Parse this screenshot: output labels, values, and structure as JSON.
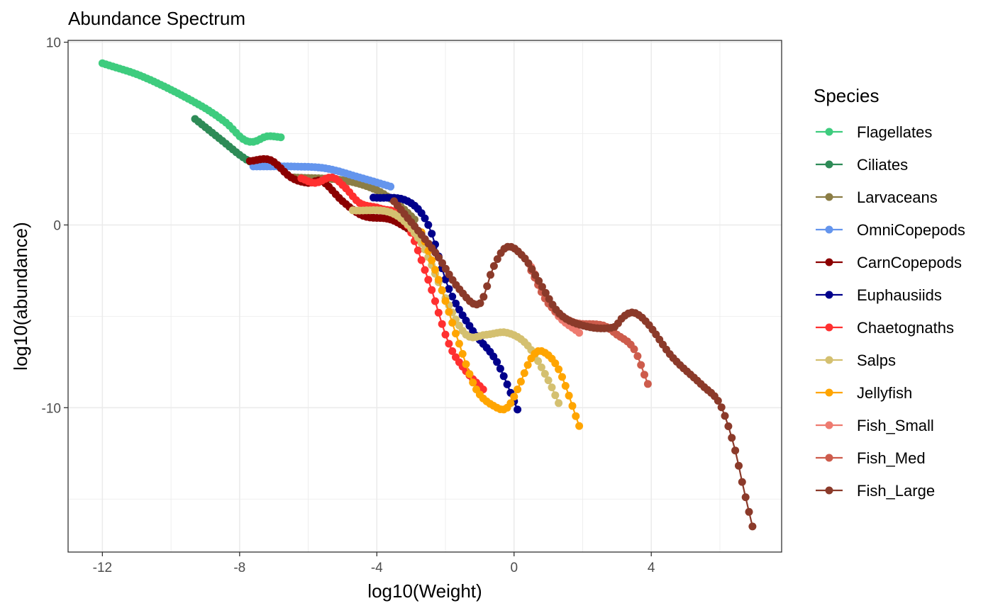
{
  "chart_data": {
    "type": "line",
    "title": "Abundance Spectrum",
    "xlabel": "log10(Weight)",
    "ylabel": "log10(abundance)",
    "xlim": [
      -13.0,
      7.8
    ],
    "ylim": [
      -17.9,
      10.1
    ],
    "x_major_ticks": [
      -12,
      -8,
      -4,
      0,
      4
    ],
    "x_tick_labels": [
      "-12",
      "-8",
      "-4",
      "0",
      "4"
    ],
    "x_minor_ticks": [
      -10,
      -6,
      -2,
      2,
      6
    ],
    "y_major_ticks": [
      10,
      0,
      -10
    ],
    "y_tick_labels": [
      "10",
      "0",
      "-10"
    ],
    "y_minor_ticks": [
      5,
      -5,
      -15
    ],
    "grid": true,
    "legend": {
      "title": "Species",
      "position": "right"
    },
    "series": [
      {
        "name": "Flagellates",
        "color": "#3ECC7E",
        "keypoints": [
          [
            -12.0,
            8.85
          ],
          [
            -10.8,
            8.1
          ],
          [
            -9.2,
            6.6
          ],
          [
            -8.4,
            5.6
          ],
          [
            -7.9,
            4.7
          ],
          [
            -7.6,
            4.55
          ],
          [
            -7.2,
            4.85
          ],
          [
            -6.8,
            4.8
          ]
        ]
      },
      {
        "name": "Ciliates",
        "color": "#2E8B57",
        "keypoints": [
          [
            -9.3,
            5.8
          ],
          [
            -8.5,
            4.6
          ],
          [
            -7.9,
            3.7
          ],
          [
            -7.5,
            3.3
          ],
          [
            -7.3,
            3.25
          ]
        ]
      },
      {
        "name": "Larvaceans",
        "color": "#8B7D45",
        "keypoints": [
          [
            -6.4,
            2.6
          ],
          [
            -5.0,
            2.45
          ],
          [
            -4.0,
            1.9
          ],
          [
            -3.3,
            1.0
          ],
          [
            -2.9,
            0.3
          ]
        ]
      },
      {
        "name": "OmniCopepods",
        "color": "#6495ED",
        "keypoints": [
          [
            -7.6,
            3.2
          ],
          [
            -6.5,
            3.2
          ],
          [
            -5.5,
            3.1
          ],
          [
            -4.5,
            2.6
          ],
          [
            -3.6,
            2.1
          ]
        ]
      },
      {
        "name": "CarnCopepods",
        "color": "#8B0000",
        "keypoints": [
          [
            -7.7,
            3.5
          ],
          [
            -7.1,
            3.55
          ],
          [
            -6.5,
            2.6
          ],
          [
            -6.0,
            2.3
          ],
          [
            -5.6,
            2.4
          ],
          [
            -5.0,
            1.3
          ],
          [
            -4.4,
            0.5
          ],
          [
            -3.6,
            0.3
          ],
          [
            -3.0,
            -0.3
          ]
        ]
      },
      {
        "name": "Euphausiids",
        "color": "#00008B",
        "keypoints": [
          [
            -4.1,
            1.5
          ],
          [
            -3.1,
            1.3
          ],
          [
            -2.5,
            0.0
          ],
          [
            -1.9,
            -3.5
          ],
          [
            -1.2,
            -5.8
          ],
          [
            -0.5,
            -7.5
          ],
          [
            0.1,
            -10.1
          ]
        ]
      },
      {
        "name": "Chaetognaths",
        "color": "#FF3030",
        "keypoints": [
          [
            -6.2,
            2.55
          ],
          [
            -5.8,
            2.3
          ],
          [
            -5.3,
            2.6
          ],
          [
            -4.9,
            2.0
          ],
          [
            -4.5,
            1.2
          ],
          [
            -3.9,
            0.9
          ],
          [
            -3.2,
            0.3
          ],
          [
            -2.5,
            -3.0
          ],
          [
            -1.9,
            -6.5
          ],
          [
            -1.4,
            -8.0
          ],
          [
            -0.9,
            -9.0
          ]
        ]
      },
      {
        "name": "Salps",
        "color": "#D4C070",
        "keypoints": [
          [
            -4.7,
            0.8
          ],
          [
            -3.5,
            0.6
          ],
          [
            -2.7,
            -1.0
          ],
          [
            -2.0,
            -4.0
          ],
          [
            -1.4,
            -6.0
          ],
          [
            -0.8,
            -6.0
          ],
          [
            -0.2,
            -5.9
          ],
          [
            0.4,
            -6.6
          ],
          [
            1.0,
            -8.5
          ],
          [
            1.3,
            -9.75
          ]
        ]
      },
      {
        "name": "Jellyfish",
        "color": "#FFA500",
        "keypoints": [
          [
            -2.7,
            -0.4
          ],
          [
            -2.2,
            -3.0
          ],
          [
            -1.6,
            -6.5
          ],
          [
            -1.1,
            -9.0
          ],
          [
            -0.5,
            -10.0
          ],
          [
            -0.2,
            -10.0
          ],
          [
            0.1,
            -9.0
          ],
          [
            0.5,
            -7.3
          ],
          [
            0.8,
            -6.9
          ],
          [
            1.3,
            -7.9
          ],
          [
            1.9,
            -11.0
          ]
        ]
      },
      {
        "name": "Fish_Small",
        "color": "#EE7B70",
        "keypoints": [
          [
            0.5,
            -2.3
          ],
          [
            0.9,
            -3.8
          ],
          [
            1.3,
            -5.0
          ],
          [
            1.9,
            -5.9
          ]
        ]
      },
      {
        "name": "Fish_Med",
        "color": "#CD5C4C",
        "keypoints": [
          [
            0.5,
            -2.5
          ],
          [
            1.0,
            -4.3
          ],
          [
            1.7,
            -5.3
          ],
          [
            2.6,
            -5.5
          ],
          [
            3.0,
            -6.0
          ],
          [
            3.5,
            -6.8
          ],
          [
            3.9,
            -8.7
          ]
        ]
      },
      {
        "name": "Fish_Large",
        "color": "#8B3A2A",
        "keypoints": [
          [
            -3.5,
            1.3
          ],
          [
            -2.3,
            -1.5
          ],
          [
            -1.6,
            -3.5
          ],
          [
            -1.0,
            -4.3
          ],
          [
            -0.6,
            -2.3
          ],
          [
            -0.2,
            -1.2
          ],
          [
            0.3,
            -1.8
          ],
          [
            0.7,
            -3.0
          ],
          [
            1.3,
            -4.8
          ],
          [
            2.0,
            -5.5
          ],
          [
            2.9,
            -5.6
          ],
          [
            3.2,
            -5.0
          ],
          [
            3.5,
            -4.8
          ],
          [
            3.9,
            -5.4
          ],
          [
            4.6,
            -7.2
          ],
          [
            5.5,
            -8.8
          ],
          [
            6.0,
            -9.8
          ],
          [
            6.4,
            -12.0
          ],
          [
            6.7,
            -14.5
          ],
          [
            6.95,
            -16.5
          ]
        ]
      }
    ]
  }
}
